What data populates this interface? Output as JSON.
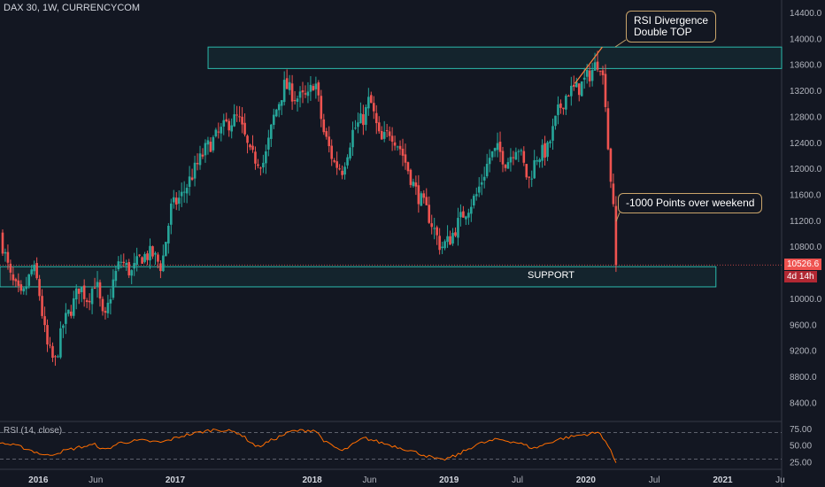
{
  "header": {
    "title": "DAX 30, 1W, CURRENCYCOM"
  },
  "price_axis": {
    "ticks": [
      "14400.0",
      "14000.0",
      "13600.0",
      "13200.0",
      "12800.0",
      "12400.0",
      "12000.0",
      "11600.0",
      "11200.0",
      "10800.0",
      "10000.0",
      "9600.0",
      "9200.0",
      "8800.0",
      "8400.0"
    ]
  },
  "current_price": {
    "value": "10526.6",
    "countdown": "4d 14h"
  },
  "time_axis": {
    "labels": [
      "2016",
      "Jun",
      "2017",
      "2018",
      "Jun",
      "2019",
      "Jul",
      "2020",
      "Jul",
      "2021",
      "Ju"
    ]
  },
  "rsi": {
    "label": "RSI (14, close)",
    "ticks": [
      "75.00",
      "50.00",
      "25.00"
    ]
  },
  "annotations": {
    "rsi_divergence": "RSI Divergence\nDouble TOP",
    "weekend_drop": "-1000 Points over weekend",
    "support": "SUPPORT"
  },
  "colors": {
    "up": "#26a69a",
    "down": "#ef5350",
    "rsi_line": "#ff6d00",
    "zone": "#2bbbad",
    "background": "#131722",
    "price_tag": "#ef5350"
  },
  "chart_data": {
    "type": "candlestick",
    "title": "DAX 30, 1W, CURRENCYCOM",
    "ylim": [
      8200,
      14550
    ],
    "rsi_ylim": [
      20,
      80
    ],
    "x_label_dates": [
      2016.0,
      2016.42,
      2017.0,
      2018.0,
      2018.42,
      2019.0,
      2019.5,
      2020.0,
      2020.5,
      2021.0,
      2021.42
    ],
    "xlim": [
      2015.72,
      2021.43
    ],
    "zones": [
      {
        "label": "RSI Divergence Double TOP",
        "from": 2017.24,
        "to": 2021.43,
        "low": 13550,
        "high": 13880
      },
      {
        "label": "SUPPORT",
        "from": 2015.72,
        "to": 2020.95,
        "low": 10190,
        "high": 10500
      }
    ],
    "close_anchors": [
      [
        2015.72,
        11000
      ],
      [
        2015.8,
        10300
      ],
      [
        2015.88,
        10000
      ],
      [
        2015.96,
        10500
      ],
      [
        2016.0,
        10200
      ],
      [
        2016.06,
        9300
      ],
      [
        2016.12,
        9000
      ],
      [
        2016.18,
        9600
      ],
      [
        2016.25,
        9900
      ],
      [
        2016.3,
        10200
      ],
      [
        2016.36,
        10000
      ],
      [
        2016.42,
        10300
      ],
      [
        2016.48,
        9600
      ],
      [
        2016.55,
        10300
      ],
      [
        2016.6,
        10600
      ],
      [
        2016.68,
        10400
      ],
      [
        2016.75,
        10650
      ],
      [
        2016.83,
        10700
      ],
      [
        2016.9,
        10500
      ],
      [
        2016.97,
        11400
      ],
      [
        2017.05,
        11600
      ],
      [
        2017.12,
        11900
      ],
      [
        2017.22,
        12300
      ],
      [
        2017.3,
        12500
      ],
      [
        2017.38,
        12700
      ],
      [
        2017.46,
        12800
      ],
      [
        2017.55,
        12200
      ],
      [
        2017.65,
        12100
      ],
      [
        2017.72,
        12800
      ],
      [
        2017.8,
        13300
      ],
      [
        2017.88,
        13100
      ],
      [
        2017.97,
        13100
      ],
      [
        2018.02,
        13400
      ],
      [
        2018.08,
        12600
      ],
      [
        2018.16,
        12100
      ],
      [
        2018.22,
        12000
      ],
      [
        2018.3,
        12600
      ],
      [
        2018.38,
        12800
      ],
      [
        2018.42,
        13100
      ],
      [
        2018.5,
        12400
      ],
      [
        2018.57,
        12600
      ],
      [
        2018.65,
        12300
      ],
      [
        2018.75,
        11700
      ],
      [
        2018.85,
        11300
      ],
      [
        2018.94,
        10800
      ],
      [
        2019.0,
        10900
      ],
      [
        2019.1,
        11300
      ],
      [
        2019.2,
        11600
      ],
      [
        2019.3,
        12200
      ],
      [
        2019.36,
        12300
      ],
      [
        2019.42,
        12100
      ],
      [
        2019.5,
        12400
      ],
      [
        2019.58,
        11800
      ],
      [
        2019.64,
        12200
      ],
      [
        2019.72,
        12300
      ],
      [
        2019.8,
        12900
      ],
      [
        2019.87,
        13200
      ],
      [
        2019.95,
        13250
      ],
      [
        2020.04,
        13500
      ],
      [
        2020.1,
        13700
      ],
      [
        2020.14,
        13200
      ],
      [
        2020.17,
        12000
      ],
      [
        2020.2,
        11500
      ],
      [
        2020.22,
        10526
      ]
    ],
    "rsi_anchors": [
      [
        2015.72,
        55
      ],
      [
        2015.88,
        48
      ],
      [
        2016.06,
        35
      ],
      [
        2016.18,
        42
      ],
      [
        2016.3,
        48
      ],
      [
        2016.42,
        52
      ],
      [
        2016.48,
        43
      ],
      [
        2016.6,
        55
      ],
      [
        2016.75,
        58
      ],
      [
        2016.9,
        55
      ],
      [
        2017.05,
        65
      ],
      [
        2017.22,
        72
      ],
      [
        2017.3,
        75
      ],
      [
        2017.46,
        70
      ],
      [
        2017.6,
        48
      ],
      [
        2017.72,
        60
      ],
      [
        2017.85,
        72
      ],
      [
        2018.02,
        74
      ],
      [
        2018.1,
        55
      ],
      [
        2018.22,
        42
      ],
      [
        2018.38,
        62
      ],
      [
        2018.5,
        55
      ],
      [
        2018.7,
        44
      ],
      [
        2018.94,
        28
      ],
      [
        2019.05,
        35
      ],
      [
        2019.2,
        52
      ],
      [
        2019.36,
        60
      ],
      [
        2019.5,
        55
      ],
      [
        2019.62,
        46
      ],
      [
        2019.8,
        60
      ],
      [
        2019.95,
        66
      ],
      [
        2020.1,
        70
      ],
      [
        2020.15,
        55
      ],
      [
        2020.22,
        25
      ]
    ]
  }
}
